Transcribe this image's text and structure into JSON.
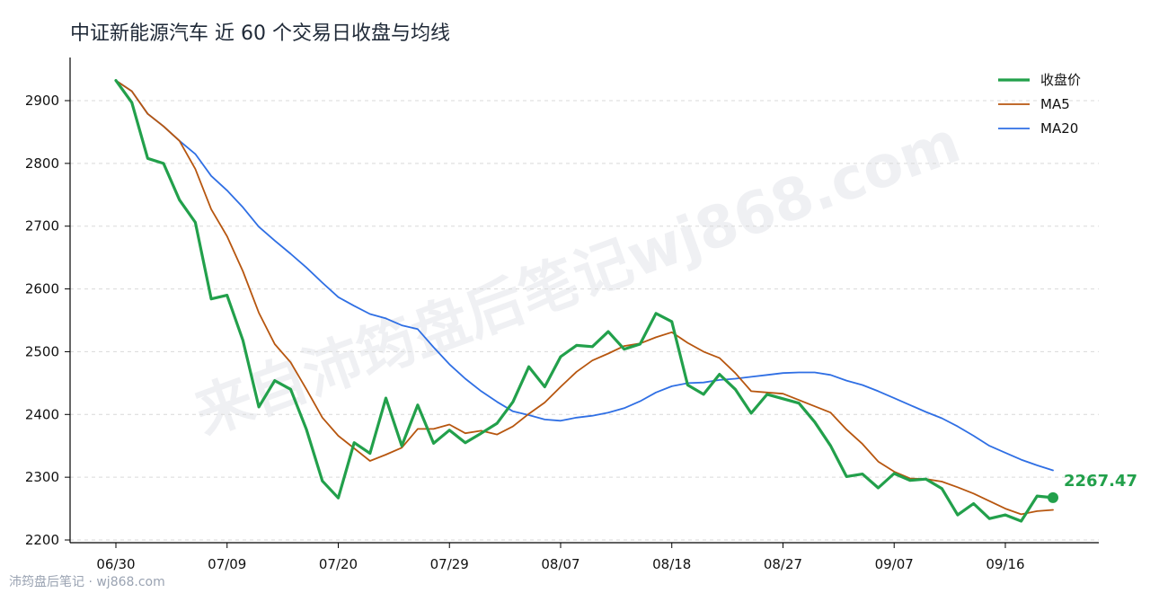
{
  "chart_data": {
    "type": "line",
    "title": "中证新能源汽车 近 60 个交易日收盘与均线",
    "xlabel": "",
    "ylabel": "",
    "ylim": [
      2200,
      2970
    ],
    "yticks": [
      2200,
      2300,
      2400,
      2500,
      2600,
      2700,
      2800,
      2900
    ],
    "xtick_labels": [
      "06/30",
      "07/09",
      "07/20",
      "07/29",
      "08/07",
      "08/18",
      "08/27",
      "09/07",
      "09/16"
    ],
    "xtick_index": [
      0,
      7,
      14,
      21,
      28,
      35,
      42,
      49,
      56
    ],
    "grid": true,
    "legend_position": "top-right",
    "series": [
      {
        "name": "收盘价",
        "color": "#22a04b",
        "values": [
          2932,
          2897,
          2808,
          2800,
          2742,
          2706,
          2584,
          2590,
          2518,
          2412,
          2454,
          2440,
          2376,
          2294,
          2267,
          2355,
          2338,
          2426,
          2350,
          2415,
          2354,
          2375,
          2355,
          2370,
          2386,
          2420,
          2476,
          2444,
          2492,
          2510,
          2508,
          2532,
          2504,
          2512,
          2561,
          2548,
          2447,
          2432,
          2464,
          2440,
          2402,
          2432,
          2425,
          2418,
          2388,
          2350,
          2301,
          2305,
          2283,
          2306,
          2295,
          2297,
          2282,
          2240,
          2258,
          2234,
          2240,
          2230,
          2270,
          2267.47
        ]
      },
      {
        "name": "MA5",
        "color": "#b7560f",
        "values": [
          2932,
          2915,
          2879,
          2859,
          2836,
          2791,
          2727,
          2684,
          2628,
          2562,
          2512,
          2483,
          2440,
          2395,
          2366,
          2346,
          2326,
          2336,
          2347,
          2377,
          2377,
          2384,
          2370,
          2374,
          2368,
          2381,
          2401,
          2419,
          2444,
          2468,
          2486,
          2497,
          2509,
          2513,
          2523,
          2531,
          2514,
          2500,
          2490,
          2466,
          2437,
          2435,
          2433,
          2423,
          2413,
          2403,
          2376,
          2353,
          2325,
          2309,
          2298,
          2297,
          2293,
          2284,
          2274,
          2262,
          2250,
          2241,
          2246,
          2248
        ]
      },
      {
        "name": "MA20",
        "color": "#2f6fe4",
        "values": [
          2932,
          2915,
          2879,
          2859,
          2836,
          2815,
          2780,
          2757,
          2730,
          2699,
          2677,
          2656,
          2634,
          2610,
          2587,
          2573,
          2560,
          2553,
          2542,
          2536,
          2507,
          2480,
          2457,
          2437,
          2420,
          2405,
          2399,
          2392,
          2390,
          2395,
          2398,
          2403,
          2410,
          2421,
          2435,
          2445,
          2450,
          2451,
          2455,
          2457,
          2460,
          2463,
          2466,
          2467,
          2467,
          2463,
          2454,
          2447,
          2437,
          2426,
          2415,
          2404,
          2394,
          2381,
          2366,
          2350,
          2339,
          2328,
          2319,
          2311
        ]
      }
    ],
    "last_value_label": "2267.47"
  },
  "watermark": "来自沛筠盘后笔记wj868.com",
  "footer": "沛筠盘后笔记 · wj868.com"
}
